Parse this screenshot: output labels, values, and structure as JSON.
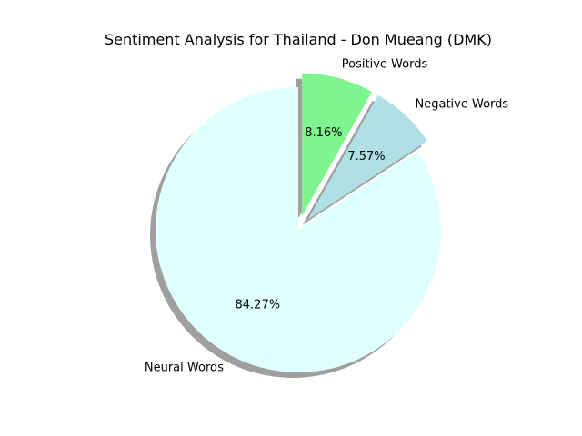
{
  "chart_data": {
    "type": "pie",
    "title": "Sentiment Analysis for Thailand - Don Mueang (DMK)",
    "start_angle_deg": 90,
    "counterclock": false,
    "shadow": true,
    "legend": "none",
    "slices": [
      {
        "label": "Positive Words",
        "value": 8.16,
        "pct_label": "8.16%",
        "color": "#7ef58f",
        "explode": 0.1
      },
      {
        "label": "Negative Words",
        "value": 7.57,
        "pct_label": "7.57%",
        "color": "#b0e0e6",
        "explode": 0.1
      },
      {
        "label": "Neural Words",
        "value": 84.27,
        "pct_label": "84.27%",
        "color": "#e0ffff",
        "explode": 0
      }
    ]
  }
}
